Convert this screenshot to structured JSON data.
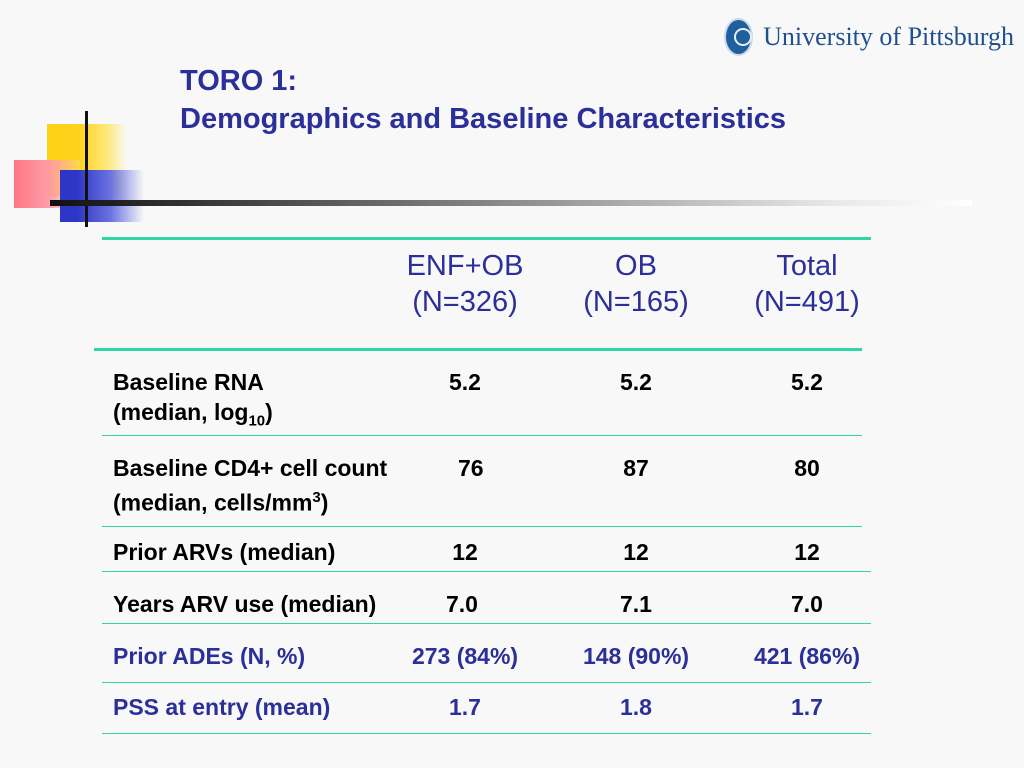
{
  "logo": {
    "text": "University of Pittsburgh"
  },
  "title": {
    "line1": "TORO 1:",
    "line2": "Demographics and Baseline Characteristics"
  },
  "columns": [
    {
      "name": "ENF+OB",
      "n": "(N=326)"
    },
    {
      "name": "OB",
      "n": "(N=165)"
    },
    {
      "name": "Total",
      "n": "(N=491)"
    }
  ],
  "rows": [
    {
      "label": "Baseline RNA",
      "sublabel_prefix": "(median, log",
      "sublabel_sub": "10",
      "sublabel_suffix": ")",
      "values": [
        "5.2",
        "5.2",
        "5.2"
      ]
    },
    {
      "label": "Baseline CD4+ cell count",
      "sublabel_prefix": "(median, cells/mm",
      "sublabel_sup": "3",
      "sublabel_suffix": ")",
      "values": [
        "76",
        "87",
        "80"
      ]
    },
    {
      "label": "Prior ARVs (median)",
      "values": [
        "12",
        "12",
        "12"
      ]
    },
    {
      "label": "Years ARV use (median)",
      "values": [
        "7.0",
        "7.1",
        "7.0"
      ]
    },
    {
      "label": "Prior ADEs (N, %)",
      "values": [
        "273 (84%)",
        "148 (90%)",
        "421 (86%)"
      ]
    },
    {
      "label": "PSS at entry (mean)",
      "values": [
        "1.7",
        "1.8",
        "1.7"
      ]
    }
  ],
  "colors": {
    "title": "#2b2f9a",
    "rule": "#2fd6a6",
    "background": "#f8f8f8"
  }
}
